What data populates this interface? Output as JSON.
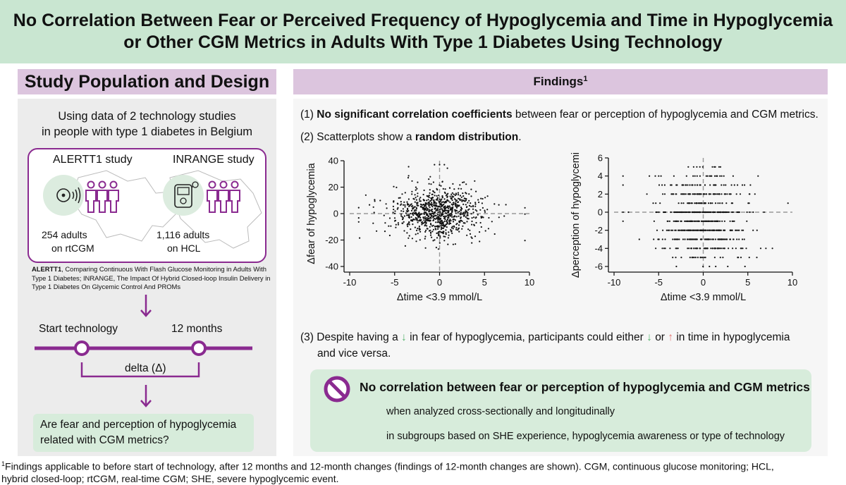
{
  "header": {
    "title_line1": "No Correlation Between Fear or Perceived Frequency of Hypoglycemia and Time in Hypoglycemia",
    "title_line2": "or Other CGM Metrics in Adults With Type 1 Diabetes Using Technology"
  },
  "left": {
    "title": "Study Population and Design",
    "intro_line1": "Using data of 2 technology studies",
    "intro_line2": "in people with type 1 diabetes in Belgium",
    "study1": {
      "name": "ALERTT1 study",
      "count": "254 adults",
      "device": "on rtCGM"
    },
    "study2": {
      "name": "INRANGE study",
      "count": "1,116 adults",
      "device": "on HCL"
    },
    "abbrev_bold1": "ALERTT1",
    "abbrev_text1": ", Comparing Continuous With Flash Glucose Monitoring in Adults With Type 1 Diabetes; INRANGE, The Impact Of Hybrid Closed-loop Insulin Delivery in Type 1 Diabetes On Glycemic Control And PROMs",
    "timeline": {
      "start": "Start technology",
      "end": "12 months",
      "delta": "delta (Δ)"
    },
    "question_line1": "Are fear and perception of hypoglycemia",
    "question_line2": "related with CGM metrics?"
  },
  "right": {
    "title": "Findings",
    "title_sup": "1",
    "f1_num": "(1)",
    "f1_bold": "No significant correlation coefficients",
    "f1_rest": "between fear or perception of hypoglycemia and CGM metrics.",
    "f2_num": "(2) Scatterplots show a",
    "f2_bold": "random distribution",
    "f2_end": ".",
    "f3_a": "(3) Despite having a",
    "f3_b": "in fear of hypoglycemia, participants could either",
    "f3_c": "or",
    "f3_d": "in time in hypoglycemia",
    "f3_line2": "and vice versa.",
    "arrow_down": "↓",
    "arrow_up": "↑",
    "conclusion_title": "No correlation between fear or perception of hypoglycemia and CGM metrics",
    "conclusion_line1": "when analyzed cross-sectionally and longitudinally",
    "conclusion_line2": "in subgroups based on SHE experience, hypoglycemia awareness or type of technology"
  },
  "footnote": {
    "sup": "1",
    "line1": "Findings applicable to before start of technology, after 12 months and 12-month changes (findings of 12-month changes are shown). CGM, continuous glucose monitoring; HCL,",
    "line2": "hybrid closed-loop; rtCGM, real-time CGM; SHE, severe hypoglycemic event."
  },
  "colors": {
    "header_green": "#c9e6d1",
    "title_purple": "#dcc5de",
    "accent_purple": "#8a2a90",
    "box_green": "#d7ecdb",
    "arrow_green": "#52b36b",
    "arrow_red": "#e57a78"
  },
  "chart_data": [
    {
      "type": "scatter",
      "xlabel": "Δtime <3.9 mmol/L",
      "ylabel": "Δfear of hypoglycemia",
      "xlim": [
        -10,
        10
      ],
      "ylim": [
        -40,
        40
      ],
      "xticks": [
        -10,
        -5,
        0,
        5,
        10
      ],
      "yticks": [
        -40,
        -20,
        0,
        20,
        40
      ],
      "reference_lines": {
        "x": 0,
        "y": 0,
        "style": "dashed"
      },
      "distribution": "random cloud centered near (0, 0), roughly x from -9 to 9 and y from -35 to 35",
      "n_points_shown": 900
    },
    {
      "type": "scatter",
      "xlabel": "Δtime <3.9 mmol/L",
      "ylabel": "Δperception of hypoglycemia",
      "xlim": [
        -10,
        10
      ],
      "ylim": [
        -6,
        6
      ],
      "xticks": [
        -10,
        -5,
        0,
        5,
        10
      ],
      "yticks": [
        -6,
        -4,
        -2,
        0,
        2,
        4,
        6
      ],
      "y_values_discrete": [
        -6,
        -5,
        -4,
        -3,
        -2,
        -1,
        0,
        1,
        2,
        3,
        4,
        5
      ],
      "reference_lines": {
        "x": 0,
        "y": 0,
        "style": "dashed"
      },
      "distribution": "points on integer y levels spread along x, densest near x = 0",
      "n_points_shown": 700
    }
  ]
}
